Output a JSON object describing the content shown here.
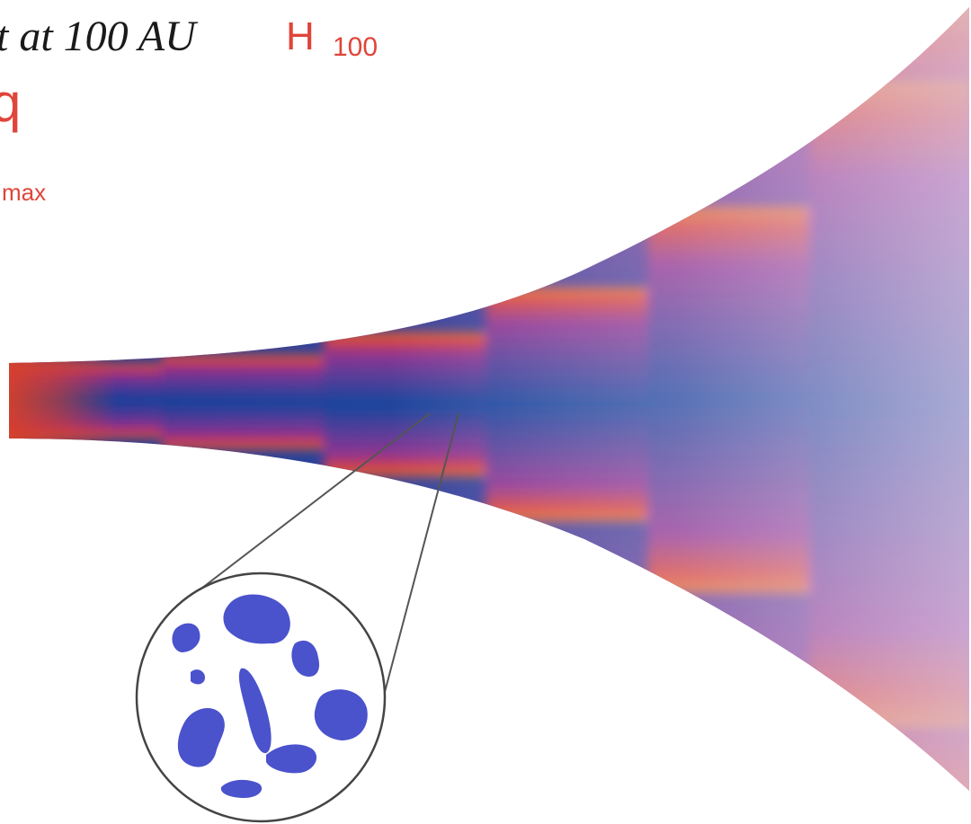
{
  "labels": {
    "height_text": "t at 100 AU",
    "height_symbol": "H",
    "height_subscript": "100",
    "flaring_symbol": "q",
    "grain_size_fragment": "max"
  },
  "colors": {
    "label_red": "#e0453a",
    "disk_edge": "#e0451a",
    "disk_midplane": "#0a3d9a",
    "disk_outer": "#c9a6d6",
    "grains": "#4a52cc",
    "inset_outline": "#444444"
  }
}
